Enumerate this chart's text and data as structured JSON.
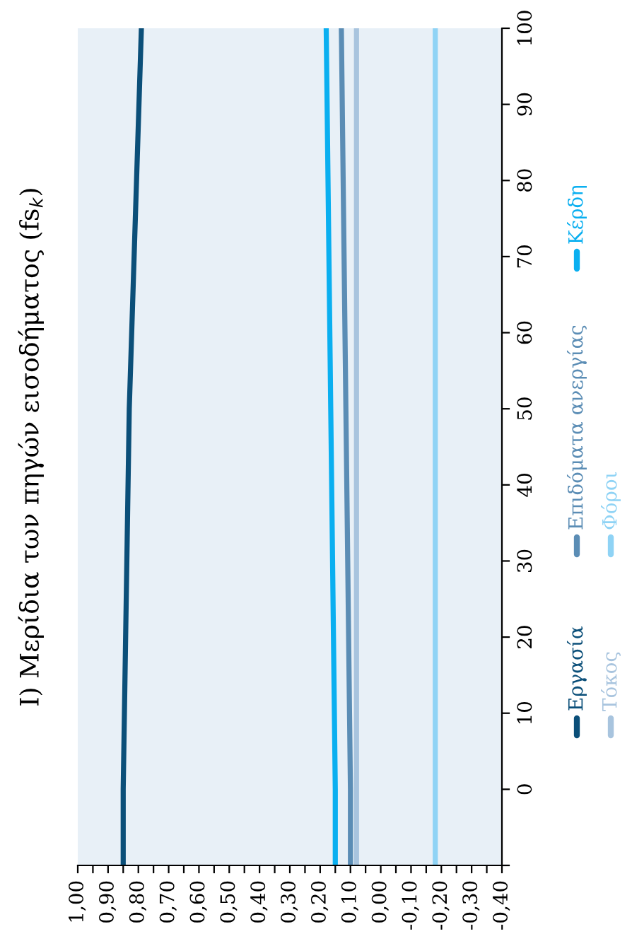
{
  "chart_data": {
    "type": "line",
    "title": "Ι) Μερίδια των πηγών εισοδήματος (fs$_{k}$)",
    "orientation": "horizontal",
    "x": [
      -10,
      0,
      50,
      100
    ],
    "series": [
      {
        "name": "Εργασία",
        "color": "#0b4f79",
        "values": [
          0.85,
          0.85,
          0.83,
          0.79
        ]
      },
      {
        "name": "Επιδόματα ανεργίας",
        "color": "#5b8db5",
        "values": [
          0.1,
          0.1,
          0.115,
          0.13
        ]
      },
      {
        "name": "Κέρδη",
        "color": "#0aaff0",
        "values": [
          0.15,
          0.15,
          0.165,
          0.18
        ]
      },
      {
        "name": "Τόκος",
        "color": "#a8c4de",
        "values": [
          0.08,
          0.08,
          0.08,
          0.08
        ]
      },
      {
        "name": "Φόροι",
        "color": "#8fd3f5",
        "values": [
          -0.18,
          -0.18,
          -0.18,
          -0.18
        ]
      }
    ],
    "ylim": [
      -10,
      100
    ],
    "yticks": [
      {
        "value": -10,
        "label": null
      },
      0,
      10,
      20,
      30,
      40,
      50,
      60,
      70,
      80,
      90,
      100
    ],
    "xlim": [
      1.0,
      -0.4
    ],
    "xticks": [
      {
        "value": 1.0,
        "label": "1,00"
      },
      {
        "value": 0.95,
        "label": null
      },
      {
        "value": 0.9,
        "label": "0,90"
      },
      {
        "value": 0.85,
        "label": null
      },
      {
        "value": 0.8,
        "label": "0,80"
      },
      {
        "value": 0.75,
        "label": null
      },
      {
        "value": 0.7,
        "label": "0,70"
      },
      {
        "value": 0.65,
        "label": null
      },
      {
        "value": 0.6,
        "label": "0,60"
      },
      {
        "value": 0.55,
        "label": null
      },
      {
        "value": 0.5,
        "label": "0,50"
      },
      {
        "value": 0.45,
        "label": null
      },
      {
        "value": 0.4,
        "label": "0,40"
      },
      {
        "value": 0.35,
        "label": null
      },
      {
        "value": 0.3,
        "label": "0,30"
      },
      {
        "value": 0.25,
        "label": null
      },
      {
        "value": 0.2,
        "label": "0,20"
      },
      {
        "value": 0.15,
        "label": null
      },
      {
        "value": 0.1,
        "label": "0,10"
      },
      {
        "value": 0.05,
        "label": null
      },
      {
        "value": 0.0,
        "label": "0,00"
      },
      {
        "value": -0.05,
        "label": null
      },
      {
        "value": -0.1,
        "label": "-0,10"
      },
      {
        "value": -0.15,
        "label": null
      },
      {
        "value": -0.2,
        "label": "-0,20"
      },
      {
        "value": -0.25,
        "label": null
      },
      {
        "value": -0.3,
        "label": "-0,30"
      },
      {
        "value": -0.35,
        "label": null
      },
      {
        "value": -0.4,
        "label": "-0,40"
      }
    ],
    "grid": false,
    "legend": "right",
    "line_style": "solid",
    "marker": "none"
  }
}
